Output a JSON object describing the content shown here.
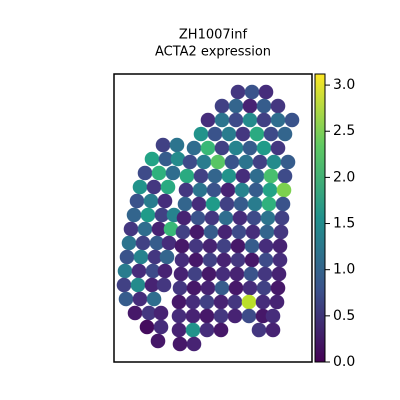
{
  "chart_data": {
    "type": "scatter",
    "title": "ZH1007inf",
    "subtitle": "ACTA2 expression",
    "colormap": "viridis",
    "xlim": [
      0,
      198
    ],
    "ylim": [
      0,
      288
    ],
    "clim": [
      0,
      3.12
    ],
    "cticks": [
      {
        "value": 0,
        "label": "0.0"
      },
      {
        "value": 0.5,
        "label": "0.5"
      },
      {
        "value": 1,
        "label": "1.0"
      },
      {
        "value": 1.5,
        "label": "1.5"
      },
      {
        "value": 2,
        "label": "2.0"
      },
      {
        "value": 2.5,
        "label": "2.5"
      },
      {
        "value": 3,
        "label": "3.0"
      }
    ],
    "x": [
      49,
      63,
      38,
      52,
      64,
      31,
      45,
      59,
      26,
      40,
      54,
      23,
      37,
      51,
      20,
      34,
      48,
      60,
      17,
      31,
      45,
      57,
      15,
      29,
      43,
      55,
      13,
      27,
      41,
      53,
      11,
      25,
      39,
      51,
      10,
      24,
      38,
      50,
      12,
      26,
      40,
      21,
      35,
      47,
      33,
      47,
      44,
      124,
      138,
      152,
      108,
      122,
      136,
      150,
      164,
      94,
      108,
      122,
      136,
      150,
      164,
      178,
      87,
      101,
      115,
      129,
      143,
      157,
      171,
      80,
      94,
      108,
      122,
      136,
      150,
      164,
      76,
      90,
      104,
      118,
      132,
      146,
      160,
      174,
      73,
      87,
      101,
      115,
      129,
      143,
      157,
      171,
      72,
      86,
      100,
      114,
      128,
      142,
      156,
      170,
      71,
      85,
      99,
      113,
      127,
      141,
      155,
      169,
      70,
      84,
      98,
      112,
      126,
      140,
      154,
      168,
      69,
      83,
      97,
      111,
      125,
      139,
      153,
      167,
      68,
      82,
      96,
      110,
      124,
      138,
      152,
      166,
      68,
      82,
      96,
      110,
      124,
      138,
      152,
      166,
      67,
      81,
      95,
      109,
      123,
      137,
      151,
      165,
      66,
      80,
      94,
      108,
      122,
      136,
      150,
      164,
      65,
      79,
      93,
      107,
      121,
      135,
      149,
      163,
      65,
      79,
      93,
      107,
      121,
      135,
      149,
      159,
      65,
      79,
      93,
      107,
      145,
      159,
      66,
      80
    ],
    "y": [
      217,
      217,
      203,
      203,
      203,
      189,
      189,
      189,
      175,
      175,
      175,
      161,
      161,
      161,
      147,
      147,
      147,
      147,
      133,
      133,
      133,
      133,
      119,
      119,
      119,
      119,
      105,
      105,
      105,
      105,
      91,
      91,
      91,
      91,
      77,
      77,
      77,
      77,
      63,
      63,
      63,
      49,
      49,
      49,
      35,
      35,
      21,
      270,
      270,
      270,
      256,
      256,
      256,
      256,
      256,
      242,
      242,
      242,
      242,
      242,
      242,
      242,
      228,
      228,
      228,
      228,
      228,
      228,
      228,
      214,
      214,
      214,
      214,
      214,
      214,
      214,
      200,
      200,
      200,
      200,
      200,
      200,
      200,
      200,
      186,
      186,
      186,
      186,
      186,
      186,
      186,
      186,
      172,
      172,
      172,
      172,
      172,
      172,
      172,
      172,
      158,
      158,
      158,
      158,
      158,
      158,
      158,
      158,
      144,
      144,
      144,
      144,
      144,
      144,
      144,
      144,
      130,
      130,
      130,
      130,
      130,
      130,
      130,
      130,
      116,
      116,
      116,
      116,
      116,
      116,
      116,
      116,
      102,
      102,
      102,
      102,
      102,
      102,
      102,
      102,
      88,
      88,
      88,
      88,
      88,
      88,
      88,
      88,
      74,
      74,
      74,
      74,
      74,
      74,
      74,
      74,
      60,
      60,
      60,
      60,
      60,
      60,
      60,
      60,
      46,
      46,
      46,
      46,
      46,
      46,
      46,
      46,
      32,
      32,
      32,
      32,
      32,
      32,
      18,
      18
    ],
    "values": [
      0.6,
      1.2,
      1.8,
      0.9,
      1.5,
      0.7,
      2.0,
      1.1,
      1.6,
      0.5,
      1.9,
      0.8,
      1.3,
      0.4,
      1.0,
      1.7,
      0.6,
      1.4,
      0.5,
      1.1,
      0.3,
      2.1,
      1.2,
      0.6,
      0.9,
      0.4,
      0.8,
      1.4,
      0.5,
      1.0,
      1.3,
      0.4,
      0.7,
      0.3,
      0.6,
      1.5,
      0.3,
      0.5,
      0.9,
      0.4,
      1.1,
      0.2,
      0.5,
      0.3,
      0.1,
      0.4,
      0.2,
      0.5,
      0.8,
      0.4,
      0.6,
      1.0,
      0.3,
      0.9,
      0.5,
      0.4,
      1.2,
      0.7,
      1.5,
      0.6,
      1.1,
      0.8,
      1.6,
      0.8,
      1.3,
      0.5,
      1.9,
      0.7,
      1.0,
      1.1,
      2.1,
      0.6,
      1.4,
      0.9,
      1.7,
      0.5,
      0.7,
      1.3,
      2.3,
      0.8,
      1.2,
      0.6,
      1.5,
      0.9,
      1.9,
      0.6,
      1.0,
      1.6,
      0.4,
      1.1,
      2.2,
      0.7,
      0.5,
      1.2,
      0.8,
      0.3,
      1.4,
      0.9,
      1.8,
      2.5,
      1.0,
      0.4,
      1.7,
      0.6,
      0.9,
      1.3,
      2.0,
      0.8,
      0.3,
      0.8,
      0.5,
      1.1,
      0.4,
      0.7,
      1.2,
      0.6,
      0.6,
      0.2,
      0.9,
      0.3,
      0.7,
      0.4,
      1.0,
      0.5,
      0.2,
      0.5,
      0.3,
      0.6,
      0.2,
      0.9,
      0.4,
      0.3,
      0.4,
      0.2,
      0.6,
      0.3,
      0.5,
      0.2,
      0.7,
      0.4,
      0.3,
      0.6,
      0.2,
      0.4,
      0.3,
      0.8,
      0.5,
      0.3,
      0.5,
      0.2,
      0.3,
      0.9,
      0.2,
      0.4,
      0.6,
      0.2,
      0.2,
      0.4,
      0.6,
      0.3,
      0.5,
      2.8,
      0.4,
      0.3,
      0.4,
      0.3,
      0.2,
      0.5,
      0.3,
      0.7,
      0.2,
      0.4,
      0.3,
      1.6,
      0.4,
      0.2,
      0.5,
      0.3,
      0.2,
      0.3
    ]
  }
}
